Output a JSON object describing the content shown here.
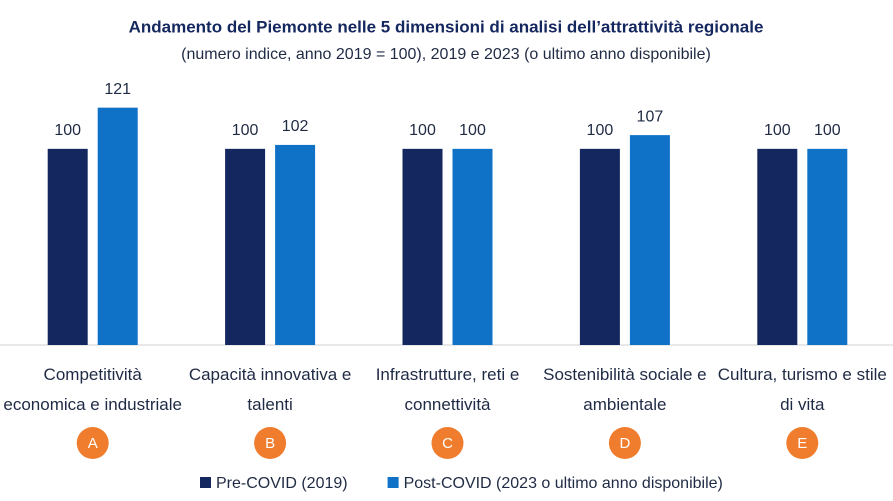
{
  "chart_data": {
    "type": "bar",
    "title": "Andamento del Piemonte nelle 5 dimensioni di analisi dell’attrattività regionale",
    "subtitle": "(numero indice, anno 2019 = 100), 2019 e 2023 (o ultimo anno disponibile)",
    "categories": [
      "Competitività economica e industriale",
      "Capacità innovativa e talenti",
      "Infrastrutture, reti e connettività",
      "Sostenibilità sociale e ambientale",
      "Cultura, turismo e stile di vita"
    ],
    "category_markers": [
      "A",
      "B",
      "C",
      "D",
      "E"
    ],
    "marker_color": "#f07d2d",
    "series": [
      {
        "name": "Pre-COVID (2019)",
        "color": "#14275e",
        "values": [
          100,
          100,
          100,
          100,
          100
        ]
      },
      {
        "name": "Post-COVID (2023 o ultimo anno disponibile)",
        "color": "#0f72c7",
        "values": [
          121,
          102,
          100,
          107,
          100
        ]
      }
    ],
    "ylim": [
      0,
      130
    ],
    "legend": "bottom"
  }
}
